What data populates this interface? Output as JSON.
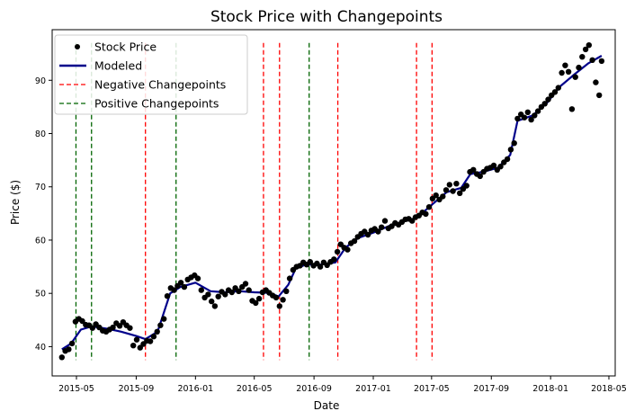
{
  "chart_data": {
    "type": "line",
    "title": "Stock Price with Changepoints",
    "xlabel": "Date",
    "ylabel": "Price ($)",
    "xlim": [
      "2015-03-12",
      "2018-05-14"
    ],
    "ylim": [
      34.5,
      99.5
    ],
    "x_ticks": [
      "2015-05",
      "2015-09",
      "2016-01",
      "2016-05",
      "2016-09",
      "2017-01",
      "2017-05",
      "2017-09",
      "2018-01",
      "2018-05"
    ],
    "y_ticks": [
      40,
      50,
      60,
      70,
      80,
      90
    ],
    "legend": {
      "placement": "top-left",
      "entries": [
        {
          "label": "Stock Price",
          "kind": "marker",
          "color": "#000000"
        },
        {
          "label": "Modeled",
          "kind": "line",
          "color": "#00008b"
        },
        {
          "label": "Negative Changepoints",
          "kind": "dashed",
          "color": "#ff0000"
        },
        {
          "label": "Positive Changepoints",
          "kind": "dashed",
          "color": "#006400"
        }
      ]
    },
    "series": [
      {
        "name": "Stock Price",
        "style": "points",
        "color": "#000000",
        "points": [
          [
            "2015-04-01",
            38.0
          ],
          [
            "2015-04-08",
            39.2
          ],
          [
            "2015-04-15",
            39.5
          ],
          [
            "2015-04-22",
            40.6
          ],
          [
            "2015-04-29",
            44.7
          ],
          [
            "2015-05-06",
            45.2
          ],
          [
            "2015-05-13",
            44.8
          ],
          [
            "2015-05-20",
            44.1
          ],
          [
            "2015-05-27",
            44.0
          ],
          [
            "2015-06-03",
            43.5
          ],
          [
            "2015-06-10",
            44.2
          ],
          [
            "2015-06-17",
            43.6
          ],
          [
            "2015-06-24",
            43.0
          ],
          [
            "2015-07-01",
            42.8
          ],
          [
            "2015-07-08",
            43.2
          ],
          [
            "2015-07-15",
            43.6
          ],
          [
            "2015-07-22",
            44.4
          ],
          [
            "2015-07-29",
            43.9
          ],
          [
            "2015-08-05",
            44.6
          ],
          [
            "2015-08-12",
            44.0
          ],
          [
            "2015-08-19",
            43.5
          ],
          [
            "2015-08-26",
            40.2
          ],
          [
            "2015-09-02",
            41.3
          ],
          [
            "2015-09-09",
            39.8
          ],
          [
            "2015-09-16",
            40.5
          ],
          [
            "2015-09-23",
            41.1
          ],
          [
            "2015-09-30",
            41.0
          ],
          [
            "2015-10-07",
            41.9
          ],
          [
            "2015-10-14",
            42.8
          ],
          [
            "2015-10-21",
            44.0
          ],
          [
            "2015-10-28",
            45.2
          ],
          [
            "2015-11-04",
            49.5
          ],
          [
            "2015-11-11",
            51.0
          ],
          [
            "2015-11-18",
            50.6
          ],
          [
            "2015-11-25",
            51.4
          ],
          [
            "2015-12-02",
            52.0
          ],
          [
            "2015-12-09",
            51.2
          ],
          [
            "2015-12-16",
            52.6
          ],
          [
            "2015-12-23",
            53.0
          ],
          [
            "2015-12-30",
            53.4
          ],
          [
            "2016-01-06",
            52.8
          ],
          [
            "2016-01-13",
            50.6
          ],
          [
            "2016-01-20",
            49.2
          ],
          [
            "2016-01-27",
            49.8
          ],
          [
            "2016-02-03",
            48.5
          ],
          [
            "2016-02-10",
            47.6
          ],
          [
            "2016-02-17",
            49.4
          ],
          [
            "2016-02-24",
            50.3
          ],
          [
            "2016-03-02",
            49.8
          ],
          [
            "2016-03-09",
            50.6
          ],
          [
            "2016-03-16",
            50.2
          ],
          [
            "2016-03-23",
            51.0
          ],
          [
            "2016-03-30",
            50.4
          ],
          [
            "2016-04-06",
            51.2
          ],
          [
            "2016-04-13",
            51.8
          ],
          [
            "2016-04-20",
            50.6
          ],
          [
            "2016-04-27",
            48.6
          ],
          [
            "2016-05-04",
            48.2
          ],
          [
            "2016-05-11",
            49.0
          ],
          [
            "2016-05-18",
            50.2
          ],
          [
            "2016-05-25",
            50.6
          ],
          [
            "2016-06-01",
            50.1
          ],
          [
            "2016-06-08",
            49.6
          ],
          [
            "2016-06-15",
            49.2
          ],
          [
            "2016-06-22",
            47.6
          ],
          [
            "2016-06-29",
            48.8
          ],
          [
            "2016-07-06",
            50.4
          ],
          [
            "2016-07-13",
            52.8
          ],
          [
            "2016-07-20",
            54.4
          ],
          [
            "2016-07-27",
            55.0
          ],
          [
            "2016-08-03",
            55.2
          ],
          [
            "2016-08-10",
            55.8
          ],
          [
            "2016-08-17",
            55.4
          ],
          [
            "2016-08-24",
            55.9
          ],
          [
            "2016-08-31",
            55.2
          ],
          [
            "2016-09-07",
            55.6
          ],
          [
            "2016-09-14",
            55.0
          ],
          [
            "2016-09-21",
            55.8
          ],
          [
            "2016-09-28",
            55.3
          ],
          [
            "2016-10-05",
            55.9
          ],
          [
            "2016-10-12",
            56.4
          ],
          [
            "2016-10-19",
            57.8
          ],
          [
            "2016-10-26",
            59.2
          ],
          [
            "2016-11-02",
            58.6
          ],
          [
            "2016-11-09",
            58.2
          ],
          [
            "2016-11-16",
            59.4
          ],
          [
            "2016-11-23",
            59.8
          ],
          [
            "2016-11-30",
            60.6
          ],
          [
            "2016-12-07",
            61.2
          ],
          [
            "2016-12-14",
            61.6
          ],
          [
            "2016-12-21",
            61.0
          ],
          [
            "2016-12-28",
            61.8
          ],
          [
            "2017-01-04",
            62.1
          ],
          [
            "2017-01-11",
            61.6
          ],
          [
            "2017-01-18",
            62.4
          ],
          [
            "2017-01-25",
            63.6
          ],
          [
            "2017-02-01",
            62.2
          ],
          [
            "2017-02-08",
            62.6
          ],
          [
            "2017-02-15",
            63.2
          ],
          [
            "2017-02-22",
            62.9
          ],
          [
            "2017-03-01",
            63.4
          ],
          [
            "2017-03-08",
            63.9
          ],
          [
            "2017-03-15",
            64.0
          ],
          [
            "2017-03-22",
            63.6
          ],
          [
            "2017-03-29",
            64.3
          ],
          [
            "2017-04-05",
            64.6
          ],
          [
            "2017-04-12",
            65.2
          ],
          [
            "2017-04-19",
            64.9
          ],
          [
            "2017-04-26",
            66.2
          ],
          [
            "2017-05-03",
            67.8
          ],
          [
            "2017-05-10",
            68.4
          ],
          [
            "2017-05-17",
            67.6
          ],
          [
            "2017-05-24",
            68.2
          ],
          [
            "2017-05-31",
            69.4
          ],
          [
            "2017-06-07",
            70.4
          ],
          [
            "2017-06-14",
            69.2
          ],
          [
            "2017-06-21",
            70.6
          ],
          [
            "2017-06-28",
            68.8
          ],
          [
            "2017-07-05",
            69.6
          ],
          [
            "2017-07-12",
            70.2
          ],
          [
            "2017-07-19",
            72.8
          ],
          [
            "2017-07-26",
            73.2
          ],
          [
            "2017-08-02",
            72.4
          ],
          [
            "2017-08-09",
            72.0
          ],
          [
            "2017-08-16",
            72.8
          ],
          [
            "2017-08-23",
            73.4
          ],
          [
            "2017-08-30",
            73.6
          ],
          [
            "2017-09-06",
            74.0
          ],
          [
            "2017-09-13",
            73.2
          ],
          [
            "2017-09-20",
            73.8
          ],
          [
            "2017-09-27",
            74.6
          ],
          [
            "2017-10-04",
            75.2
          ],
          [
            "2017-10-11",
            77.0
          ],
          [
            "2017-10-18",
            78.2
          ],
          [
            "2017-10-25",
            82.8
          ],
          [
            "2017-11-01",
            83.6
          ],
          [
            "2017-11-08",
            83.0
          ],
          [
            "2017-11-15",
            84.0
          ],
          [
            "2017-11-22",
            82.6
          ],
          [
            "2017-11-29",
            83.4
          ],
          [
            "2017-12-06",
            84.2
          ],
          [
            "2017-12-13",
            85.0
          ],
          [
            "2017-12-20",
            85.6
          ],
          [
            "2017-12-27",
            86.4
          ],
          [
            "2018-01-03",
            87.2
          ],
          [
            "2018-01-10",
            87.8
          ],
          [
            "2018-01-17",
            88.6
          ],
          [
            "2018-01-24",
            91.4
          ],
          [
            "2018-01-31",
            92.8
          ],
          [
            "2018-02-07",
            91.6
          ],
          [
            "2018-02-14",
            84.6
          ],
          [
            "2018-02-21",
            90.6
          ],
          [
            "2018-02-28",
            92.4
          ],
          [
            "2018-03-07",
            94.4
          ],
          [
            "2018-03-14",
            95.8
          ],
          [
            "2018-03-21",
            96.6
          ],
          [
            "2018-03-28",
            93.8
          ],
          [
            "2018-04-04",
            89.6
          ],
          [
            "2018-04-11",
            87.2
          ],
          [
            "2018-04-16",
            93.6
          ]
        ]
      },
      {
        "name": "Modeled",
        "style": "line",
        "color": "#00008b",
        "points": [
          [
            "2015-04-01",
            39.5
          ],
          [
            "2015-04-20",
            40.6
          ],
          [
            "2015-05-10",
            43.2
          ],
          [
            "2015-06-01",
            43.8
          ],
          [
            "2015-07-01",
            43.4
          ],
          [
            "2015-08-01",
            42.8
          ],
          [
            "2015-09-01",
            42.0
          ],
          [
            "2015-09-20",
            41.4
          ],
          [
            "2015-10-15",
            42.8
          ],
          [
            "2015-11-10",
            50.0
          ],
          [
            "2015-12-01",
            51.2
          ],
          [
            "2016-01-01",
            52.0
          ],
          [
            "2016-02-01",
            50.4
          ],
          [
            "2016-03-01",
            50.2
          ],
          [
            "2016-04-01",
            50.4
          ],
          [
            "2016-05-01",
            50.2
          ],
          [
            "2016-06-01",
            50.1
          ],
          [
            "2016-06-20",
            49.4
          ],
          [
            "2016-07-10",
            51.6
          ],
          [
            "2016-07-25",
            54.6
          ],
          [
            "2016-08-15",
            55.4
          ],
          [
            "2016-09-15",
            55.4
          ],
          [
            "2016-10-15",
            55.8
          ],
          [
            "2016-11-05",
            58.6
          ],
          [
            "2016-12-01",
            60.4
          ],
          [
            "2017-01-01",
            61.4
          ],
          [
            "2017-02-01",
            62.6
          ],
          [
            "2017-03-01",
            63.4
          ],
          [
            "2017-04-01",
            64.2
          ],
          [
            "2017-05-01",
            66.6
          ],
          [
            "2017-06-01",
            69.0
          ],
          [
            "2017-07-01",
            69.8
          ],
          [
            "2017-07-20",
            72.4
          ],
          [
            "2017-08-15",
            72.8
          ],
          [
            "2017-09-15",
            73.6
          ],
          [
            "2017-10-10",
            76.0
          ],
          [
            "2017-10-25",
            82.4
          ],
          [
            "2017-11-25",
            83.4
          ],
          [
            "2017-12-25",
            85.8
          ],
          [
            "2018-01-20",
            88.8
          ],
          [
            "2018-02-20",
            91.2
          ],
          [
            "2018-03-20",
            93.2
          ],
          [
            "2018-04-16",
            94.6
          ]
        ]
      }
    ],
    "changepoints": {
      "negative": [
        "2015-09-20",
        "2016-05-20",
        "2016-06-22",
        "2016-10-20",
        "2017-03-31",
        "2017-05-02"
      ],
      "positive": [
        "2015-04-30",
        "2015-06-01",
        "2015-11-22",
        "2016-08-22"
      ]
    }
  }
}
